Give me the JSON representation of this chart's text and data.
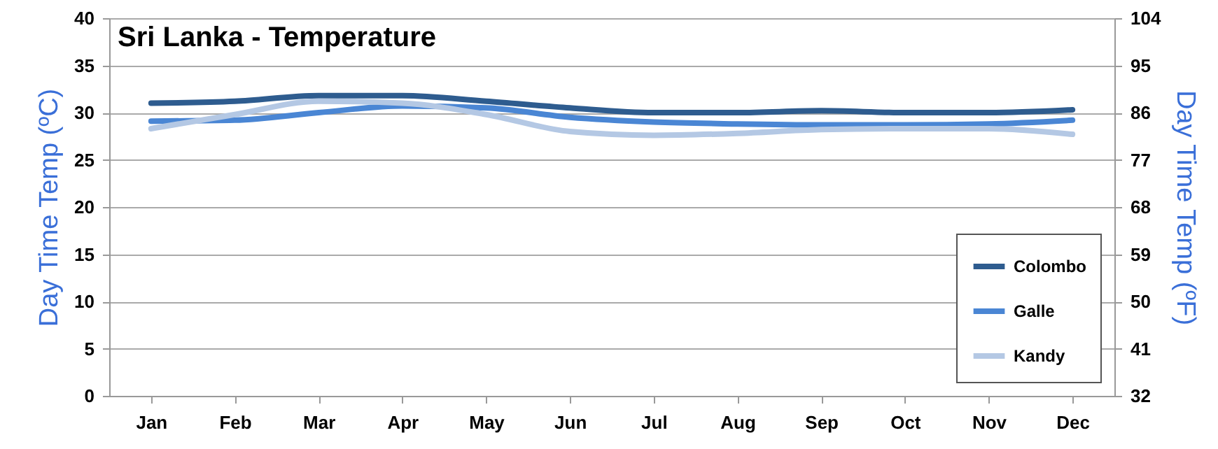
{
  "chart_data": {
    "type": "line",
    "title": "Sri Lanka  - Temperature",
    "ylabel": "Day Time Temp (ºC)",
    "y2label": "Day Time Temp (ºF)",
    "categories": [
      "Jan",
      "Feb",
      "Mar",
      "Apr",
      "May",
      "Jun",
      "Jul",
      "Aug",
      "Sep",
      "Oct",
      "Nov",
      "Dec"
    ],
    "series": [
      {
        "name": "Colombo",
        "color": "#2e5c8f",
        "values": [
          31.0,
          31.2,
          31.8,
          31.8,
          31.2,
          30.5,
          30.0,
          30.0,
          30.2,
          30.0,
          30.0,
          30.3
        ]
      },
      {
        "name": "Galle",
        "color": "#4a86d4",
        "values": [
          29.1,
          29.2,
          30.0,
          30.7,
          30.5,
          29.5,
          29.0,
          28.8,
          28.7,
          28.7,
          28.8,
          29.2
        ]
      },
      {
        "name": "Kandy",
        "color": "#b4c8e4",
        "values": [
          28.3,
          29.8,
          31.2,
          31.0,
          29.8,
          28.0,
          27.6,
          27.8,
          28.2,
          28.3,
          28.3,
          27.7
        ]
      }
    ],
    "ylim": [
      0,
      40
    ],
    "yticks": [
      0,
      5,
      10,
      15,
      20,
      25,
      30,
      35,
      40
    ],
    "y2lim": [
      32,
      104
    ],
    "y2ticks": [
      32,
      41,
      50,
      59,
      68,
      77,
      86,
      95,
      104
    ],
    "grid": "y",
    "legend": "bottom right",
    "line_style": "solid",
    "marker": "none"
  }
}
